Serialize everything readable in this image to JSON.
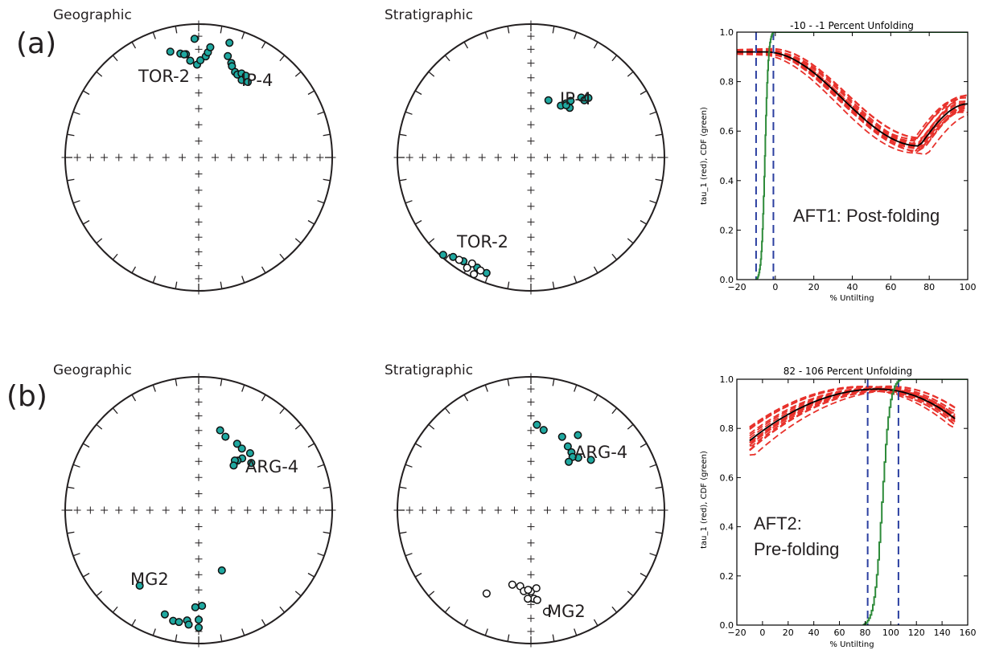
{
  "figure": {
    "rows": [
      {
        "label": "(a)",
        "nets": [
          {
            "title": "Geographic",
            "sites": [
              {
                "name": "TOR-2",
                "points": [
                  {
                    "dec": 345,
                    "inc": 19,
                    "lower": true
                  },
                  {
                    "dec": 350,
                    "inc": 22,
                    "lower": true
                  },
                  {
                    "dec": 353,
                    "inc": 23,
                    "lower": true
                  },
                  {
                    "dec": 355,
                    "inc": 28,
                    "lower": true
                  },
                  {
                    "dec": 358,
                    "inc": 12,
                    "lower": true
                  },
                  {
                    "dec": 359,
                    "inc": 31,
                    "lower": true
                  },
                  {
                    "dec": 1,
                    "inc": 28,
                    "lower": true
                  },
                  {
                    "dec": 4,
                    "inc": 25,
                    "lower": true
                  },
                  {
                    "dec": 5,
                    "inc": 22,
                    "lower": true
                  },
                  {
                    "dec": 6,
                    "inc": 18,
                    "lower": true
                  },
                  {
                    "dec": 352,
                    "inc": 23,
                    "lower": true
                  }
                ]
              },
              {
                "name": "IP-4",
                "points": [
                  {
                    "dec": 15,
                    "inc": 12,
                    "lower": true
                  },
                  {
                    "dec": 16,
                    "inc": 22,
                    "lower": true
                  },
                  {
                    "dec": 19,
                    "inc": 26,
                    "lower": true
                  },
                  {
                    "dec": 20,
                    "inc": 28,
                    "lower": true
                  },
                  {
                    "dec": 23,
                    "inc": 31,
                    "lower": true
                  },
                  {
                    "dec": 25,
                    "inc": 32,
                    "lower": true
                  },
                  {
                    "dec": 27,
                    "inc": 30,
                    "lower": true
                  },
                  {
                    "dec": 29,
                    "inc": 34,
                    "lower": true
                  },
                  {
                    "dec": 30,
                    "inc": 30,
                    "lower": true
                  },
                  {
                    "dec": 33,
                    "inc": 33,
                    "lower": true
                  }
                ]
              }
            ]
          },
          {
            "title": "Stratigraphic",
            "sites": [
              {
                "name": "IP-4",
                "points": [
                  {
                    "dec": 17,
                    "inc": 53,
                    "lower": true
                  },
                  {
                    "dec": 30,
                    "inc": 53,
                    "lower": true
                  },
                  {
                    "dec": 33,
                    "inc": 50,
                    "lower": true
                  },
                  {
                    "dec": 35,
                    "inc": 47,
                    "lower": true
                  },
                  {
                    "dec": 38,
                    "inc": 51,
                    "lower": true
                  },
                  {
                    "dec": 34,
                    "inc": 51,
                    "lower": true
                  },
                  {
                    "dec": 40,
                    "inc": 41,
                    "lower": true
                  },
                  {
                    "dec": 43,
                    "inc": 41,
                    "lower": true
                  },
                  {
                    "dec": 44,
                    "inc": 38,
                    "lower": true
                  }
                ]
              },
              {
                "name": "TOR-2",
                "points": [
                  {
                    "dec": 222,
                    "inc": 2,
                    "lower": true
                  },
                  {
                    "dec": 218,
                    "inc": 6,
                    "lower": true
                  },
                  {
                    "dec": 213,
                    "inc": 8,
                    "lower": true
                  },
                  {
                    "dec": 206,
                    "inc": 9,
                    "lower": true
                  },
                  {
                    "dec": 201,
                    "inc": 8,
                    "lower": true
                  },
                  {
                    "dec": 209,
                    "inc": 10,
                    "lower": false
                  },
                  {
                    "dec": 204,
                    "inc": 8,
                    "lower": false
                  },
                  {
                    "dec": 215,
                    "inc": 7,
                    "lower": false
                  },
                  {
                    "dec": 210,
                    "inc": 5,
                    "lower": false
                  },
                  {
                    "dec": 206,
                    "inc": 3,
                    "lower": false
                  }
                ]
              }
            ]
          }
        ],
        "foldtest": {
          "title": "-10 - -1 Percent Unfolding",
          "annotation_lines": [
            "AFT1: Post-folding"
          ],
          "chart_data": {
            "type": "line",
            "title": "-10 - -1 Percent Unfolding",
            "xlabel": "% Untilting",
            "ylabel": "tau_1 (red), CDF (green)",
            "xlim": [
              -20,
              100
            ],
            "ylim": [
              0.0,
              1.0
            ],
            "xticks": [
              -20,
              0,
              20,
              40,
              60,
              80,
              100
            ],
            "yticks": [
              0.0,
              0.2,
              0.4,
              0.6,
              0.8,
              1.0
            ],
            "tau_curve_type": "post",
            "tau_peak_untilting": -5,
            "tau_peak": 0.92,
            "tau_min_untilting": 75,
            "tau_min": 0.54,
            "tau_end": 0.71,
            "confidence_bounds": [
              -10,
              -1
            ],
            "cdf_start": -10,
            "cdf_end": -1,
            "bootstrap_count": 20,
            "colors": {
              "bootstrap": "#e8322c",
              "mean": "#000000",
              "cdf": "#2e8b3a",
              "bounds": "#2b3fa0"
            }
          }
        }
      },
      {
        "label": "(b)",
        "nets": [
          {
            "title": "Geographic",
            "sites": [
              {
                "name": "ARG-4",
                "points": [
                  {
                    "dec": 15,
                    "inc": 38,
                    "lower": true
                  },
                  {
                    "dec": 20,
                    "inc": 41,
                    "lower": true
                  },
                  {
                    "dec": 30,
                    "inc": 42,
                    "lower": true
                  },
                  {
                    "dec": 35,
                    "inc": 43,
                    "lower": true
                  },
                  {
                    "dec": 42,
                    "inc": 42,
                    "lower": true
                  },
                  {
                    "dec": 40,
                    "inc": 48,
                    "lower": true
                  },
                  {
                    "dec": 38,
                    "inc": 51,
                    "lower": true
                  },
                  {
                    "dec": 36,
                    "inc": 52,
                    "lower": true
                  },
                  {
                    "dec": 38,
                    "inc": 55,
                    "lower": true
                  },
                  {
                    "dec": 48,
                    "inc": 46,
                    "lower": true
                  }
                ]
              },
              {
                "name": "MG2",
                "points": [
                  {
                    "dec": 218,
                    "inc": 29,
                    "lower": true
                  },
                  {
                    "dec": 198,
                    "inc": 19,
                    "lower": true
                  },
                  {
                    "dec": 193,
                    "inc": 16,
                    "lower": true
                  },
                  {
                    "dec": 190,
                    "inc": 16,
                    "lower": true
                  },
                  {
                    "dec": 186,
                    "inc": 18,
                    "lower": true
                  },
                  {
                    "dec": 185,
                    "inc": 15,
                    "lower": true
                  },
                  {
                    "dec": 180,
                    "inc": 13,
                    "lower": true
                  },
                  {
                    "dec": 180,
                    "inc": 19,
                    "lower": true
                  },
                  {
                    "dec": 178,
                    "inc": 29,
                    "lower": true
                  },
                  {
                    "dec": 182,
                    "inc": 28,
                    "lower": true
                  },
                  {
                    "dec": 159,
                    "inc": 50,
                    "lower": true
                  }
                ]
              }
            ]
          },
          {
            "title": "Stratigraphic",
            "sites": [
              {
                "name": "ARG-4",
                "points": [
                  {
                    "dec": 4,
                    "inc": 36,
                    "lower": true
                  },
                  {
                    "dec": 9,
                    "inc": 39,
                    "lower": true
                  },
                  {
                    "dec": 23,
                    "inc": 40,
                    "lower": true
                  },
                  {
                    "dec": 30,
                    "inc": 44,
                    "lower": true
                  },
                  {
                    "dec": 35,
                    "inc": 46,
                    "lower": true
                  },
                  {
                    "dec": 42,
                    "inc": 46,
                    "lower": true
                  },
                  {
                    "dec": 38,
                    "inc": 48,
                    "lower": true
                  },
                  {
                    "dec": 38,
                    "inc": 52,
                    "lower": true
                  },
                  {
                    "dec": 50,
                    "inc": 41,
                    "lower": true
                  },
                  {
                    "dec": 32,
                    "inc": 34,
                    "lower": true
                  }
                ]
              },
              {
                "name": "MG2",
                "points": [
                  {
                    "dec": 208,
                    "inc": 30,
                    "lower": false
                  },
                  {
                    "dec": 194,
                    "inc": 42,
                    "lower": false
                  },
                  {
                    "dec": 188,
                    "inc": 42,
                    "lower": false
                  },
                  {
                    "dec": 185,
                    "inc": 39,
                    "lower": false
                  },
                  {
                    "dec": 180,
                    "inc": 39,
                    "lower": false
                  },
                  {
                    "dec": 176,
                    "inc": 41,
                    "lower": false
                  },
                  {
                    "dec": 178,
                    "inc": 34,
                    "lower": false
                  },
                  {
                    "dec": 182,
                    "inc": 40,
                    "lower": false
                  },
                  {
                    "dec": 182,
                    "inc": 34,
                    "lower": false
                  },
                  {
                    "dec": 176,
                    "inc": 33,
                    "lower": false
                  },
                  {
                    "dec": 171,
                    "inc": 24,
                    "lower": false
                  }
                ]
              }
            ]
          }
        ],
        "foldtest": {
          "title": "82 - 106 Percent Unfolding",
          "annotation_lines": [
            "AFT2:",
            "Pre-folding"
          ],
          "chart_data": {
            "type": "line",
            "title": "82 - 106 Percent Unfolding",
            "xlabel": "% Untilting",
            "ylabel": "tau_1 (red), CDF (green)",
            "xlim": [
              -20,
              160
            ],
            "ylim": [
              0.0,
              1.0
            ],
            "xticks": [
              -20,
              0,
              20,
              40,
              60,
              80,
              100,
              120,
              140,
              160
            ],
            "yticks": [
              0.0,
              0.2,
              0.4,
              0.6,
              0.8,
              1.0
            ],
            "tau_curve_type": "pre",
            "tau_peak_untilting": 90,
            "tau_peak": 0.96,
            "tau_start": 0.75,
            "tau_end": 0.84,
            "curve_range": [
              -10,
              150
            ],
            "confidence_bounds": [
              82,
              106
            ],
            "cdf_start": 78,
            "cdf_end": 108,
            "bootstrap_count": 20,
            "colors": {
              "bootstrap": "#e8322c",
              "mean": "#000000",
              "cdf": "#2e8b3a",
              "bounds": "#2b3fa0"
            }
          }
        }
      }
    ]
  }
}
